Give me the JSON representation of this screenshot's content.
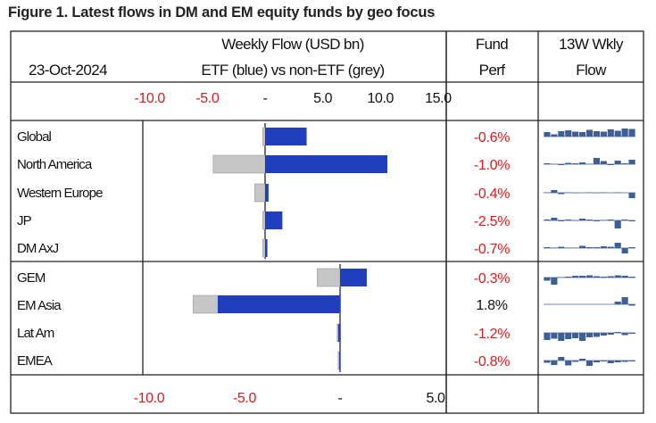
{
  "title": "Figure 1. Latest flows in DM and EM equity funds by geo focus",
  "header": {
    "date": "23-Oct-2024",
    "flow_line1": "Weekly Flow (USD bn)",
    "flow_line2": "ETF (blue) vs non-ETF (grey)",
    "perf_line1": "Fund",
    "perf_line2": "Perf",
    "wkly_line1": "13W Wkly",
    "wkly_line2": "Flow"
  },
  "colors": {
    "etf": "#1f3fbf",
    "non_etf": "#c6c6c6",
    "spark": "#3d5f97",
    "negative": "#e0191c",
    "positive": "#111111",
    "grid": "#222222"
  },
  "chart_data": [
    {
      "type": "bar",
      "orientation": "horizontal",
      "stacked": true,
      "title": "Weekly Flow (USD bn) - DM",
      "categories": [
        "Global",
        "North America",
        "Western Europe",
        "JP",
        "DM AxJ"
      ],
      "series": [
        {
          "name": "ETF",
          "values": [
            3.6,
            10.6,
            0.3,
            1.5,
            0.2
          ]
        },
        {
          "name": "non-ETF",
          "values": [
            -0.2,
            -4.5,
            -0.9,
            -0.2,
            -0.2
          ]
        }
      ],
      "xlim": [
        -10.0,
        15.0
      ],
      "ticks": [
        -10,
        -5,
        0,
        5,
        10,
        15
      ],
      "tick_labels": [
        "-10.0",
        "-5.0",
        "-",
        "5.0",
        "10.0",
        "15.0"
      ],
      "fund_perf": [
        "-0.6%",
        "-1.0%",
        "-0.4%",
        "-2.5%",
        "-0.7%"
      ],
      "sparklines": [
        [
          0.5,
          0.25,
          0.6,
          0.7,
          0.55,
          0.5,
          0.75,
          0.6,
          0.55,
          0.8,
          0.65,
          0.9,
          0.85
        ],
        [
          0.1,
          0.05,
          -0.1,
          0.15,
          0.1,
          0.2,
          0.05,
          0.7,
          0.35,
          -0.1,
          0.4,
          0.1,
          0.5
        ],
        [
          0.05,
          0.3,
          -0.15,
          0.05,
          -0.05,
          0.0,
          0.05,
          -0.05,
          0.05,
          0.0,
          0.05,
          0.0,
          -0.6
        ],
        [
          0.1,
          0.3,
          -0.1,
          0.1,
          -0.05,
          0.2,
          0.1,
          -0.1,
          0.05,
          0.1,
          -0.9,
          0.1,
          -0.1
        ],
        [
          0.1,
          0.05,
          0.15,
          0.05,
          0.05,
          0.25,
          0.1,
          0.1,
          0.2,
          0.15,
          0.6,
          -0.6,
          0.1
        ]
      ]
    },
    {
      "type": "bar",
      "orientation": "horizontal",
      "stacked": true,
      "title": "Weekly Flow (USD bn) - EM",
      "categories": [
        "GEM",
        "EM Asia",
        "Lat Am",
        "EMEA"
      ],
      "series": [
        {
          "name": "ETF",
          "values": [
            1.4,
            -6.4,
            -0.1,
            -0.05
          ]
        },
        {
          "name": "non-ETF",
          "values": [
            -1.2,
            -1.3,
            -0.05,
            -0.05
          ]
        }
      ],
      "xlim": [
        -10.0,
        5.0
      ],
      "ticks": [
        -10,
        -5,
        0,
        5
      ],
      "tick_labels": [
        "-10.0",
        "-5.0",
        "-",
        "5.0"
      ],
      "fund_perf": [
        "-0.3%",
        "1.8%",
        "-1.2%",
        "-0.8%"
      ],
      "sparklines": [
        [
          -0.35,
          -0.8,
          0.05,
          0.1,
          0.2,
          0.2,
          0.25,
          0.15,
          0.1,
          0.15,
          0.25,
          0.2,
          0.1
        ],
        [
          0.02,
          0.02,
          0.02,
          0.02,
          0.02,
          0.02,
          0.02,
          0.02,
          0.02,
          0.02,
          0.3,
          0.8,
          -0.15
        ],
        [
          -0.8,
          -0.65,
          -0.9,
          -0.7,
          -0.6,
          -0.9,
          -0.5,
          -0.45,
          -0.3,
          -0.2,
          0.1,
          -0.25,
          -0.1
        ],
        [
          -0.25,
          -0.5,
          0.4,
          -0.55,
          -0.15,
          0.2,
          -0.6,
          -0.2,
          -0.1,
          -0.3,
          -0.2,
          -0.15,
          -0.1
        ]
      ]
    }
  ]
}
